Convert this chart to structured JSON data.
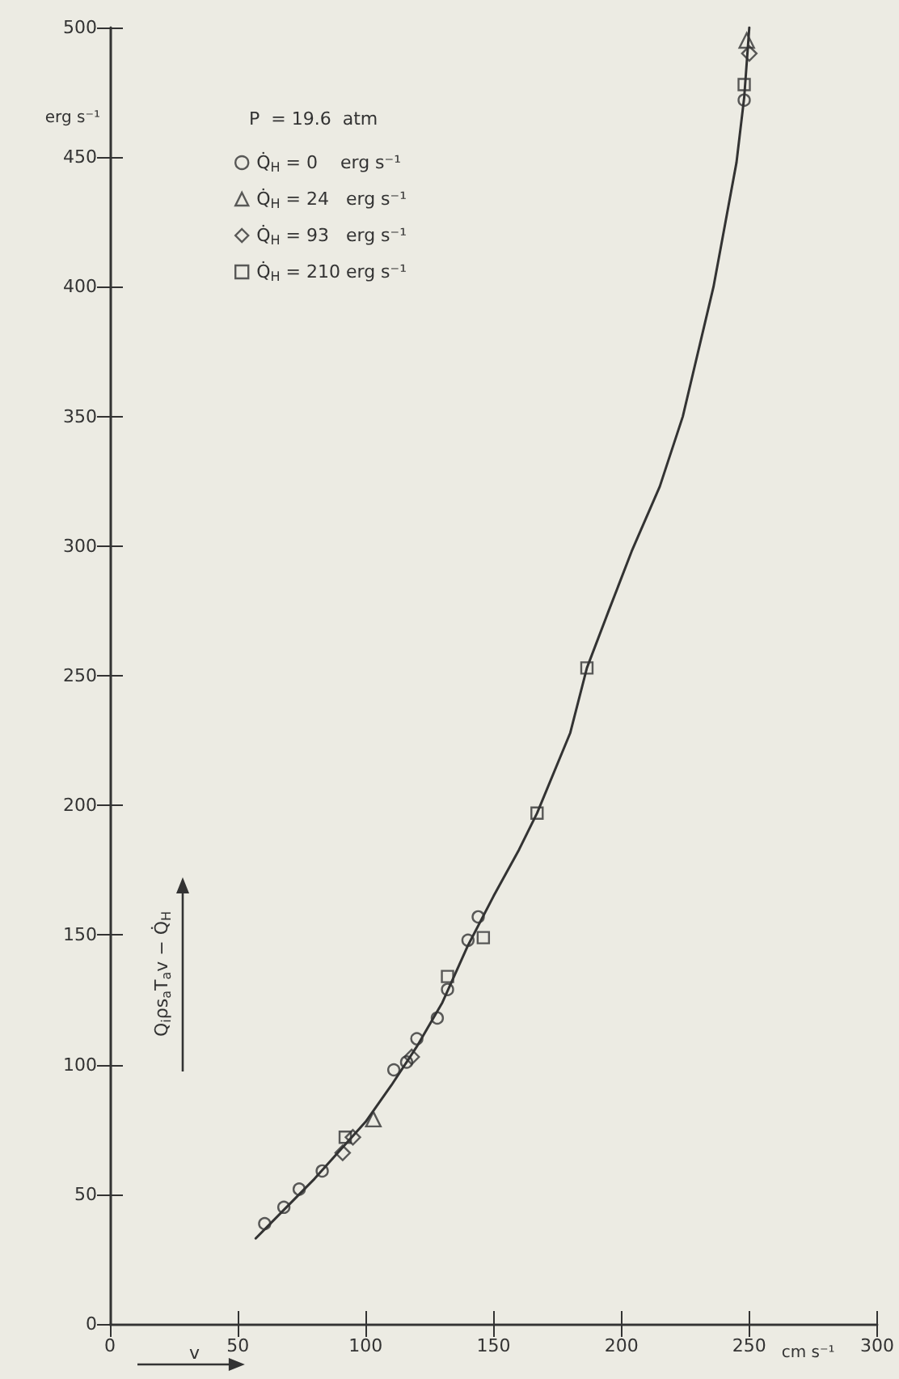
{
  "chart_data": {
    "type": "scatter",
    "xlabel": "v",
    "ylabel": "Q$_{i}$ρs$_{a}$T$_{a}$v − Q̇$_{H}$",
    "legend_title": "P  = 19.6  atm",
    "annotations": [
      "erg s⁻¹",
      "cm s⁻¹"
    ],
    "xlim": [
      0,
      300
    ],
    "xticks": [
      0,
      50,
      100,
      150,
      200,
      250,
      300
    ],
    "ylim": [
      0,
      500
    ],
    "yticks": [
      0,
      50,
      100,
      150,
      200,
      250,
      300,
      350,
      400,
      450,
      500
    ],
    "grid": false,
    "legend": "top left",
    "series": [
      {
        "name": "Q̇$_{H}$ = 0    erg s⁻¹",
        "color": "#333333",
        "marker": "circle",
        "x": [
          60.5,
          68,
          74,
          83,
          111,
          116,
          120,
          128,
          132,
          140,
          144,
          248
        ],
        "values": [
          38.7,
          45,
          52,
          59,
          98,
          101,
          110,
          118,
          129,
          148,
          157,
          472
        ]
      },
      {
        "name": "Q̇$_{H}$ = 24   erg s⁻¹",
        "color": "#333333",
        "marker": "triangle",
        "x": [
          103,
          249
        ],
        "values": [
          79,
          495
        ]
      },
      {
        "name": "Q̇$_{H}$ = 93   erg s⁻¹",
        "color": "#333333",
        "marker": "diamond",
        "x": [
          91,
          95,
          118,
          250
        ],
        "values": [
          66,
          72,
          103,
          490
        ]
      },
      {
        "name": "Q̇$_{H}$ = 210 erg s⁻¹",
        "color": "#333333",
        "marker": "square",
        "x": [
          92,
          132,
          146,
          167,
          186.5,
          248
        ],
        "values": [
          72,
          134,
          149,
          197,
          253,
          478
        ]
      },
      {
        "type": "line",
        "color": "#333333",
        "marker": "none",
        "x": [
          57,
          70,
          80,
          90,
          100,
          110,
          120,
          130,
          140,
          150,
          160,
          167,
          180,
          186.5,
          195,
          204,
          215,
          224,
          236,
          245,
          248,
          250
        ],
        "values": [
          33,
          46,
          56,
          67,
          78,
          92,
          107,
          124,
          146,
          165,
          183,
          197,
          228,
          253,
          275,
          298,
          323,
          350,
          400,
          448,
          473,
          500
        ]
      }
    ]
  }
}
